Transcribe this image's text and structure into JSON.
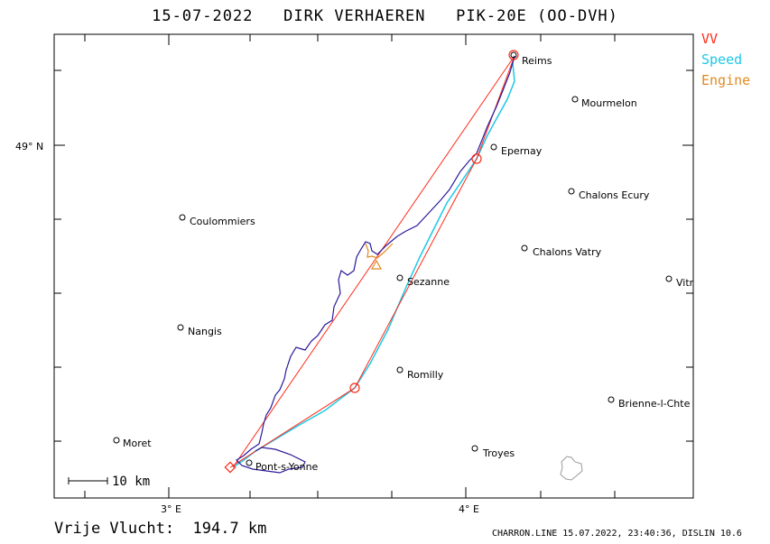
{
  "header": {
    "title": "15-07-2022   DIRK VERHAEREN   PIK-20E (OO-DVH)"
  },
  "legend": {
    "vv": "VV",
    "speed": "Speed",
    "engine": "Engine"
  },
  "colors": {
    "vv": "#ff2a1a",
    "speed": "#1ec8e6",
    "engine": "#e08a20",
    "track": "#2a1a9a",
    "frame": "#000000"
  },
  "axes": {
    "lat_label": "49° N",
    "lon_label_left": "3° E",
    "lon_label_right": "4° E"
  },
  "scale": {
    "label": "10 km"
  },
  "places": [
    {
      "name": "Reims"
    },
    {
      "name": "Mourmelon"
    },
    {
      "name": "Epernay"
    },
    {
      "name": "Chalons Ecury"
    },
    {
      "name": "Coulommiers"
    },
    {
      "name": "Chalons Vatry"
    },
    {
      "name": "Sezanne"
    },
    {
      "name": "Vitr"
    },
    {
      "name": "Nangis"
    },
    {
      "name": "Romilly"
    },
    {
      "name": "Brienne-l-Chte"
    },
    {
      "name": "Moret"
    },
    {
      "name": "Troyes"
    },
    {
      "name": "Pont-s-Yonne"
    }
  ],
  "footer": {
    "distance": "Vrije Vlucht:  194.7 km",
    "credit": "CHARRON.LINE 15.07.2022, 23:40:36, DISLIN 10.6"
  }
}
